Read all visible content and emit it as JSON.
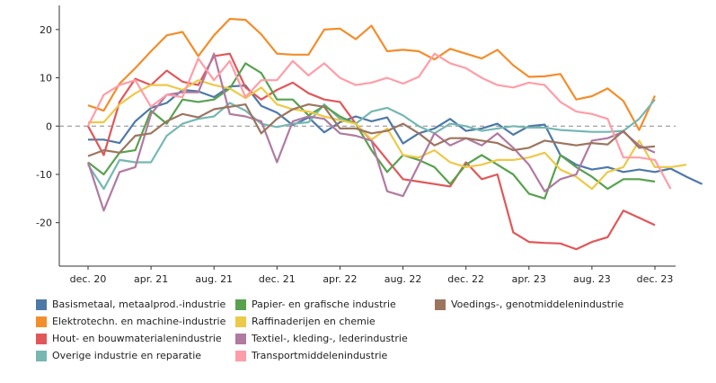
{
  "chart_data": {
    "type": "line",
    "title": "",
    "xlabel": "",
    "ylabel": "",
    "ylim": [
      -29,
      25
    ],
    "yticks": [
      20,
      10,
      0,
      -10,
      -20
    ],
    "x_tick_labels": [
      "dec. 20",
      "apr. 21",
      "aug. 21",
      "dec. 21",
      "apr. 22",
      "aug. 22",
      "dec. 22",
      "apr. 23",
      "aug. 23",
      "dec. 23"
    ],
    "x_tick_index": [
      0,
      4,
      8,
      12,
      16,
      20,
      24,
      28,
      32,
      36
    ],
    "zero_line": "dashed",
    "legend_position": "bottom",
    "series": [
      {
        "name": "Basismetaal, metaalprod.-industrie",
        "color": "#4e79a7",
        "values": [
          -2.8,
          -2.8,
          -3.5,
          1,
          3.8,
          4.8,
          7.5,
          7.2,
          6,
          8.2,
          8.4,
          4.2,
          2.8,
          0.2,
          1.8,
          -1.3,
          0.8,
          2,
          1,
          1.8,
          -3.6,
          -1.5,
          -0.5,
          1.5,
          -1,
          -0.5,
          0.5,
          -1.8,
          0,
          0.3,
          -6,
          -8,
          -9,
          -8.5,
          -9.5,
          -9,
          -9.5,
          -8.8,
          -10.5,
          -12
        ]
      },
      {
        "name": "Elektrotechn. en machine-industrie",
        "color": "#f28e2b",
        "values": [
          4.3,
          3.2,
          8.8,
          12,
          15.5,
          18.8,
          19.5,
          14.5,
          18.8,
          22.2,
          22,
          19,
          15,
          14.8,
          14.8,
          20,
          20.2,
          18,
          20.8,
          15.5,
          15.8,
          15.5,
          13.8,
          16,
          15,
          14,
          15.8,
          12.6,
          10.2,
          10.3,
          10.8,
          5.5,
          6.2,
          7.8,
          5.2,
          -0.8,
          6.3
        ]
      },
      {
        "name": "Hout- en bouwmaterialenindustrie",
        "color": "#e15759",
        "values": [
          0,
          -6,
          5,
          9.8,
          8.5,
          11.5,
          9.2,
          8.5,
          14.5,
          15,
          8,
          5.5,
          7.5,
          9,
          6.8,
          5.5,
          5,
          0.5,
          -3,
          -7,
          -11,
          -11.5,
          -12,
          -12.5,
          -7.5,
          -11,
          -10,
          -22,
          -24,
          -24.2,
          -24.3,
          -25.5,
          -24,
          -23,
          -17.5,
          -19,
          -20.5
        ]
      },
      {
        "name": "Overige industrie en reparatie",
        "color": "#76b7b2",
        "values": [
          -8,
          -13,
          -7,
          -7.5,
          -7.5,
          -2,
          0.5,
          1.5,
          2,
          4.8,
          3.2,
          0.5,
          -0.2,
          0.5,
          0.8,
          4.5,
          1.5,
          0.5,
          3,
          3.8,
          2.2,
          0,
          -1.5,
          0.5,
          0,
          -1,
          -0.5,
          0,
          -0.3,
          -0.3,
          -0.8,
          -1,
          -1.2,
          -1.2,
          -1,
          1.5,
          5.5
        ]
      },
      {
        "name": "Papier- en grafische industrie",
        "color": "#59a14f",
        "values": [
          -7.5,
          -10,
          -5.5,
          -5,
          3.2,
          0.5,
          5.5,
          5,
          5.5,
          7.8,
          13,
          11,
          5.5,
          5.5,
          2.2,
          4.2,
          2,
          0.5,
          -5,
          -9.5,
          -6,
          -7,
          -8.5,
          -12,
          -8,
          -6,
          -8,
          -10,
          -14,
          -15,
          -6,
          -8.5,
          -10.5,
          -13,
          -11,
          -11,
          -11.5
        ]
      },
      {
        "name": "Raffinaderijen en chemie",
        "color": "#edc948",
        "values": [
          0.8,
          0.8,
          4.5,
          6.8,
          8.5,
          8.5,
          7.5,
          9.5,
          8.5,
          7.8,
          5.8,
          8,
          4.5,
          3.5,
          3,
          2,
          1.2,
          0.5,
          -2.8,
          -0.5,
          -6,
          -6.5,
          -5,
          -7.5,
          -8.5,
          -8,
          -7,
          -7,
          -6.5,
          -5.5,
          -9,
          -10.5,
          -13,
          -9.5,
          -8.5,
          -3,
          -8.5,
          -8.5,
          -8
        ]
      },
      {
        "name": "Textiel-, kleding-, lederindustrie",
        "color": "#b07aa1",
        "values": [
          -7.5,
          -17.5,
          -9.5,
          -8.5,
          2.5,
          6.5,
          7,
          7,
          15,
          2.5,
          2,
          1,
          -7.5,
          1,
          2,
          1.5,
          -1.5,
          -2,
          -3,
          -13.5,
          -14.5,
          -8,
          -1.5,
          -4,
          -2.5,
          -4,
          -1.5,
          -4.5,
          -8,
          -13.5,
          -11,
          -10,
          -3,
          -2.5,
          -1.2,
          -4,
          -5.5
        ]
      },
      {
        "name": "Transportmiddelenindustrie",
        "color": "#ff9da7",
        "values": [
          0,
          6.5,
          8.5,
          9.5,
          4,
          6.5,
          6,
          14,
          9.5,
          13.5,
          6,
          9.5,
          9.5,
          13.5,
          10.5,
          13,
          10,
          8.5,
          9,
          10,
          8.8,
          10.2,
          15,
          13,
          12,
          10,
          8.5,
          8,
          9,
          8.5,
          5,
          3,
          2.5,
          1.5,
          -6.5,
          -6.5,
          -7,
          -13
        ]
      },
      {
        "name": "Voedings-, genotmiddelenindustrie",
        "color": "#9c755f",
        "values": [
          -6.2,
          -5,
          -5.5,
          -2,
          -1.5,
          1,
          2.5,
          1.8,
          3.5,
          4,
          4.5,
          -1.5,
          1.5,
          3.5,
          4.5,
          4,
          -0.5,
          -0.5,
          -1.5,
          -1,
          0.5,
          -1.5,
          -4,
          -2.5,
          -2.5,
          -3,
          -3.5,
          -5,
          -4.5,
          -3,
          -3.5,
          -4,
          -3.5,
          -3.8,
          -1,
          -4.5,
          -4.2
        ]
      }
    ]
  }
}
